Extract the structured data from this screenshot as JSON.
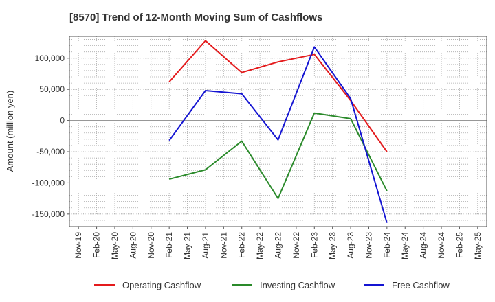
{
  "chart_data": {
    "type": "line",
    "title": "[8570]  Trend of 12-Month Moving Sum of Cashflows",
    "ylabel": "Amount (million yen)",
    "xlabel": "",
    "categories": [
      "Nov-19",
      "Feb-20",
      "May-20",
      "Aug-20",
      "Nov-20",
      "Feb-21",
      "May-21",
      "Aug-21",
      "Nov-21",
      "Feb-22",
      "May-22",
      "Aug-22",
      "Nov-22",
      "Feb-23",
      "May-23",
      "Aug-23",
      "Nov-23",
      "Feb-24",
      "May-24",
      "Aug-24",
      "Nov-24",
      "Feb-25",
      "May-25"
    ],
    "ylim": [
      -170000,
      135000
    ],
    "yticks": [
      100000,
      50000,
      0,
      -50000,
      -100000,
      -150000
    ],
    "ytick_labels": [
      "100,000",
      "50,000",
      "0",
      "-50,000",
      "-100,000",
      "-150,000"
    ],
    "grid": true,
    "legend_position": "bottom",
    "series": [
      {
        "name": "Operating Cashflow",
        "color": "#e41a1c",
        "values": [
          null,
          null,
          null,
          null,
          null,
          62000,
          null,
          128000,
          null,
          77000,
          null,
          94000,
          null,
          106000,
          null,
          32000,
          null,
          -50000,
          null,
          null,
          null,
          null,
          null
        ]
      },
      {
        "name": "Investing Cashflow",
        "color": "#2a8a2a",
        "values": [
          null,
          null,
          null,
          null,
          null,
          -94000,
          null,
          -79000,
          null,
          -33000,
          null,
          -125000,
          null,
          12000,
          null,
          3000,
          null,
          -113000,
          null,
          null,
          null,
          null,
          null
        ]
      },
      {
        "name": "Free Cashflow",
        "color": "#1414d2",
        "values": [
          null,
          null,
          null,
          null,
          null,
          -32000,
          null,
          48000,
          null,
          43000,
          null,
          -31000,
          null,
          118000,
          null,
          35000,
          null,
          -164000,
          null,
          null,
          null,
          null,
          null
        ]
      }
    ]
  }
}
